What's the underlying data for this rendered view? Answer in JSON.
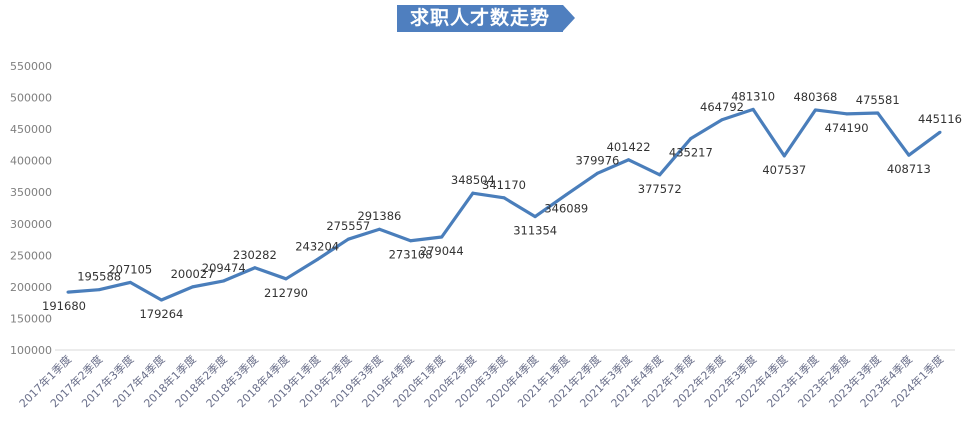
{
  "chart_data": {
    "type": "line",
    "title": "求职人才数走势",
    "categories": [
      "2017年1季度",
      "2017年2季度",
      "2017年3季度",
      "2017年4季度",
      "2018年1季度",
      "2018年2季度",
      "2018年3季度",
      "2018年4季度",
      "2019年1季度",
      "2019年2季度",
      "2019年3季度",
      "2019年4季度",
      "2020年1季度",
      "2020年2季度",
      "2020年3季度",
      "2020年4季度",
      "2021年1季度",
      "2021年2季度",
      "2021年3季度",
      "2021年4季度",
      "2022年1季度",
      "2022年2季度",
      "2022年3季度",
      "2022年4季度",
      "2023年1季度",
      "2023年2季度",
      "2023年3季度",
      "2023年4季度",
      "2024年1季度"
    ],
    "values": [
      191680,
      195588,
      207105,
      179264,
      200027,
      209474,
      230282,
      212790,
      243204,
      275557,
      291386,
      273108,
      279044,
      348504,
      341170,
      311354,
      346089,
      379976,
      401422,
      377572,
      435217,
      464792,
      481310,
      407537,
      480368,
      474190,
      475581,
      408713,
      445116
    ],
    "yticks": [
      "100000",
      "150000",
      "200000",
      "250000",
      "300000",
      "350000",
      "400000",
      "450000",
      "500000",
      "550000"
    ],
    "ylim": [
      100000,
      550000
    ],
    "grid": false,
    "legend": "none",
    "line_color": "#4a7ebb",
    "banner_color": "#4f7fbf"
  }
}
